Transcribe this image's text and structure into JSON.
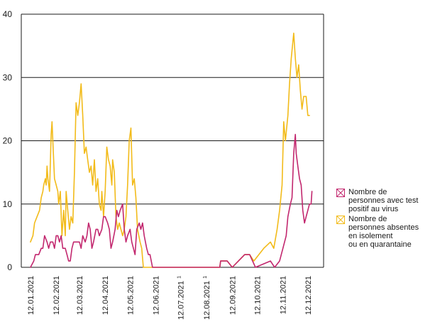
{
  "chart_data": {
    "type": "line",
    "title": "",
    "xlabel": "",
    "ylabel": "",
    "ylim": [
      0,
      40
    ],
    "yticks": [
      0,
      10,
      20,
      30,
      40
    ],
    "grid": "horizontal",
    "legend_position": "right",
    "x_range": [
      "2021-01-01",
      "2021-12-31"
    ],
    "xtick_labels": [
      {
        "label": "12.01.2021",
        "sup": ""
      },
      {
        "label": "12.02.2021",
        "sup": ""
      },
      {
        "label": "12.03.2021",
        "sup": ""
      },
      {
        "label": "12.04.2021",
        "sup": ""
      },
      {
        "label": "12.05.2021",
        "sup": ""
      },
      {
        "label": "12.06.2021",
        "sup": ""
      },
      {
        "label": "12.07.2021",
        "sup": "1"
      },
      {
        "label": "12.08.2021",
        "sup": "1"
      },
      {
        "label": "12.09.2021",
        "sup": ""
      },
      {
        "label": "12.10.2021",
        "sup": ""
      },
      {
        "label": "12.11.2021",
        "sup": ""
      },
      {
        "label": "12.12.2021",
        "sup": ""
      }
    ],
    "xtick_dates": [
      "2021-01-12",
      "2021-02-12",
      "2021-03-12",
      "2021-04-12",
      "2021-05-12",
      "2021-06-12",
      "2021-07-12",
      "2021-08-12",
      "2021-09-12",
      "2021-10-12",
      "2021-11-12",
      "2021-12-12"
    ],
    "series": [
      {
        "name": "Nombre de\npersonnes avec test\npositif au virus",
        "color": "#c2276e",
        "points": [
          [
            "2021-01-12",
            0
          ],
          [
            "2021-01-16",
            1
          ],
          [
            "2021-01-18",
            2
          ],
          [
            "2021-01-22",
            2
          ],
          [
            "2021-01-25",
            3
          ],
          [
            "2021-01-27",
            3
          ],
          [
            "2021-01-29",
            5
          ],
          [
            "2021-02-01",
            4
          ],
          [
            "2021-02-03",
            3
          ],
          [
            "2021-02-05",
            4
          ],
          [
            "2021-02-08",
            4
          ],
          [
            "2021-02-10",
            3
          ],
          [
            "2021-02-12",
            5
          ],
          [
            "2021-02-14",
            5
          ],
          [
            "2021-02-16",
            4
          ],
          [
            "2021-02-18",
            5
          ],
          [
            "2021-02-20",
            3
          ],
          [
            "2021-02-23",
            3
          ],
          [
            "2021-02-25",
            2
          ],
          [
            "2021-02-27",
            1
          ],
          [
            "2021-03-01",
            1
          ],
          [
            "2021-03-03",
            3
          ],
          [
            "2021-03-05",
            4
          ],
          [
            "2021-03-08",
            4
          ],
          [
            "2021-03-10",
            4
          ],
          [
            "2021-03-12",
            4
          ],
          [
            "2021-03-14",
            3
          ],
          [
            "2021-03-16",
            5
          ],
          [
            "2021-03-19",
            4
          ],
          [
            "2021-03-21",
            5
          ],
          [
            "2021-03-23",
            7
          ],
          [
            "2021-03-25",
            6
          ],
          [
            "2021-03-27",
            3
          ],
          [
            "2021-03-29",
            4
          ],
          [
            "2021-04-01",
            6
          ],
          [
            "2021-04-03",
            6
          ],
          [
            "2021-04-05",
            5
          ],
          [
            "2021-04-08",
            6
          ],
          [
            "2021-04-10",
            8
          ],
          [
            "2021-04-12",
            8
          ],
          [
            "2021-04-15",
            7
          ],
          [
            "2021-04-17",
            6
          ],
          [
            "2021-04-19",
            3
          ],
          [
            "2021-04-21",
            4
          ],
          [
            "2021-04-24",
            6
          ],
          [
            "2021-04-26",
            9
          ],
          [
            "2021-04-28",
            8
          ],
          [
            "2021-04-30",
            9
          ],
          [
            "2021-05-03",
            10
          ],
          [
            "2021-05-05",
            6
          ],
          [
            "2021-05-07",
            4
          ],
          [
            "2021-05-09",
            5
          ],
          [
            "2021-05-12",
            6
          ],
          [
            "2021-05-14",
            4
          ],
          [
            "2021-05-16",
            3
          ],
          [
            "2021-05-18",
            2
          ],
          [
            "2021-05-20",
            6
          ],
          [
            "2021-05-23",
            7
          ],
          [
            "2021-05-25",
            6
          ],
          [
            "2021-05-27",
            7
          ],
          [
            "2021-05-29",
            5
          ],
          [
            "2021-06-01",
            3
          ],
          [
            "2021-06-03",
            2
          ],
          [
            "2021-06-05",
            2
          ],
          [
            "2021-06-08",
            0
          ],
          [
            "2021-06-20",
            0
          ],
          [
            "2021-07-15",
            0
          ],
          [
            "2021-08-15",
            0
          ],
          [
            "2021-08-28",
            0
          ],
          [
            "2021-08-29",
            1
          ],
          [
            "2021-09-02",
            1
          ],
          [
            "2021-09-06",
            1
          ],
          [
            "2021-09-12",
            0
          ],
          [
            "2021-09-27",
            2
          ],
          [
            "2021-10-03",
            2
          ],
          [
            "2021-10-10",
            0
          ],
          [
            "2021-10-28",
            1
          ],
          [
            "2021-11-02",
            0
          ],
          [
            "2021-11-08",
            1
          ],
          [
            "2021-11-12",
            3
          ],
          [
            "2021-11-16",
            5
          ],
          [
            "2021-11-18",
            8
          ],
          [
            "2021-11-21",
            10
          ],
          [
            "2021-11-23",
            11
          ],
          [
            "2021-11-25",
            18
          ],
          [
            "2021-11-27",
            21
          ],
          [
            "2021-11-28",
            18
          ],
          [
            "2021-11-30",
            16
          ],
          [
            "2021-12-02",
            14
          ],
          [
            "2021-12-04",
            13
          ],
          [
            "2021-12-06",
            9
          ],
          [
            "2021-12-08",
            7
          ],
          [
            "2021-12-10",
            8
          ],
          [
            "2021-12-12",
            9
          ],
          [
            "2021-12-14",
            10
          ],
          [
            "2021-12-16",
            10
          ],
          [
            "2021-12-17",
            12
          ]
        ]
      },
      {
        "name": "Nombre de\npersonnes absentes\nen isolement\nou en quarantaine",
        "color": "#f2bb1a",
        "points": [
          [
            "2021-01-12",
            4
          ],
          [
            "2021-01-15",
            5
          ],
          [
            "2021-01-17",
            7
          ],
          [
            "2021-01-20",
            8
          ],
          [
            "2021-01-23",
            9
          ],
          [
            "2021-01-25",
            11
          ],
          [
            "2021-01-27",
            12
          ],
          [
            "2021-01-28",
            13
          ],
          [
            "2021-01-30",
            14
          ],
          [
            "2021-01-31",
            13
          ],
          [
            "2021-02-01",
            16
          ],
          [
            "2021-02-02",
            14
          ],
          [
            "2021-02-04",
            12
          ],
          [
            "2021-02-06",
            21
          ],
          [
            "2021-02-07",
            23
          ],
          [
            "2021-02-09",
            17
          ],
          [
            "2021-02-10",
            14
          ],
          [
            "2021-02-12",
            13
          ],
          [
            "2021-02-14",
            12
          ],
          [
            "2021-02-15",
            10
          ],
          [
            "2021-02-17",
            12
          ],
          [
            "2021-02-19",
            5
          ],
          [
            "2021-02-21",
            9
          ],
          [
            "2021-02-23",
            5
          ],
          [
            "2021-02-24",
            12
          ],
          [
            "2021-02-26",
            9
          ],
          [
            "2021-02-28",
            6
          ],
          [
            "2021-03-02",
            8
          ],
          [
            "2021-03-04",
            7
          ],
          [
            "2021-03-06",
            15
          ],
          [
            "2021-03-08",
            26
          ],
          [
            "2021-03-10",
            24
          ],
          [
            "2021-03-12",
            26
          ],
          [
            "2021-03-14",
            29
          ],
          [
            "2021-03-16",
            24
          ],
          [
            "2021-03-18",
            18
          ],
          [
            "2021-03-20",
            19
          ],
          [
            "2021-03-22",
            17
          ],
          [
            "2021-03-24",
            15
          ],
          [
            "2021-03-26",
            16
          ],
          [
            "2021-03-28",
            13
          ],
          [
            "2021-03-30",
            17
          ],
          [
            "2021-04-01",
            12
          ],
          [
            "2021-04-03",
            14
          ],
          [
            "2021-04-05",
            10
          ],
          [
            "2021-04-07",
            9
          ],
          [
            "2021-04-08",
            12
          ],
          [
            "2021-04-10",
            8
          ],
          [
            "2021-04-12",
            12
          ],
          [
            "2021-04-14",
            19
          ],
          [
            "2021-04-16",
            17
          ],
          [
            "2021-04-18",
            16
          ],
          [
            "2021-04-20",
            13
          ],
          [
            "2021-04-21",
            17
          ],
          [
            "2021-04-23",
            15
          ],
          [
            "2021-04-25",
            8
          ],
          [
            "2021-04-27",
            6
          ],
          [
            "2021-04-29",
            7
          ],
          [
            "2021-05-01",
            6
          ],
          [
            "2021-05-03",
            5
          ],
          [
            "2021-05-05",
            6
          ],
          [
            "2021-05-07",
            8
          ],
          [
            "2021-05-09",
            13
          ],
          [
            "2021-05-11",
            20
          ],
          [
            "2021-05-13",
            22
          ],
          [
            "2021-05-15",
            13
          ],
          [
            "2021-05-17",
            14
          ],
          [
            "2021-05-19",
            11
          ],
          [
            "2021-05-21",
            6
          ],
          [
            "2021-05-24",
            4
          ],
          [
            "2021-05-26",
            3
          ],
          [
            "2021-05-28",
            0
          ],
          [
            "2021-06-10",
            0
          ],
          [
            "2021-07-15",
            0
          ],
          [
            "2021-08-15",
            0
          ],
          [
            "2021-08-28",
            0
          ],
          [
            "2021-08-29",
            1
          ],
          [
            "2021-09-02",
            1
          ],
          [
            "2021-09-06",
            1
          ],
          [
            "2021-09-12",
            0
          ],
          [
            "2021-09-27",
            2
          ],
          [
            "2021-10-03",
            2
          ],
          [
            "2021-10-08",
            1
          ],
          [
            "2021-10-20",
            3
          ],
          [
            "2021-10-28",
            4
          ],
          [
            "2021-11-01",
            3
          ],
          [
            "2021-11-05",
            6
          ],
          [
            "2021-11-08",
            9
          ],
          [
            "2021-11-11",
            13
          ],
          [
            "2021-11-13",
            23
          ],
          [
            "2021-11-15",
            20
          ],
          [
            "2021-11-18",
            24
          ],
          [
            "2021-11-20",
            29
          ],
          [
            "2021-11-22",
            33
          ],
          [
            "2021-11-25",
            37
          ],
          [
            "2021-11-27",
            33
          ],
          [
            "2021-11-29",
            30
          ],
          [
            "2021-12-01",
            32
          ],
          [
            "2021-12-03",
            28
          ],
          [
            "2021-12-05",
            25
          ],
          [
            "2021-12-07",
            27
          ],
          [
            "2021-12-10",
            27
          ],
          [
            "2021-12-12",
            24
          ],
          [
            "2021-12-14",
            24
          ]
        ]
      }
    ]
  }
}
